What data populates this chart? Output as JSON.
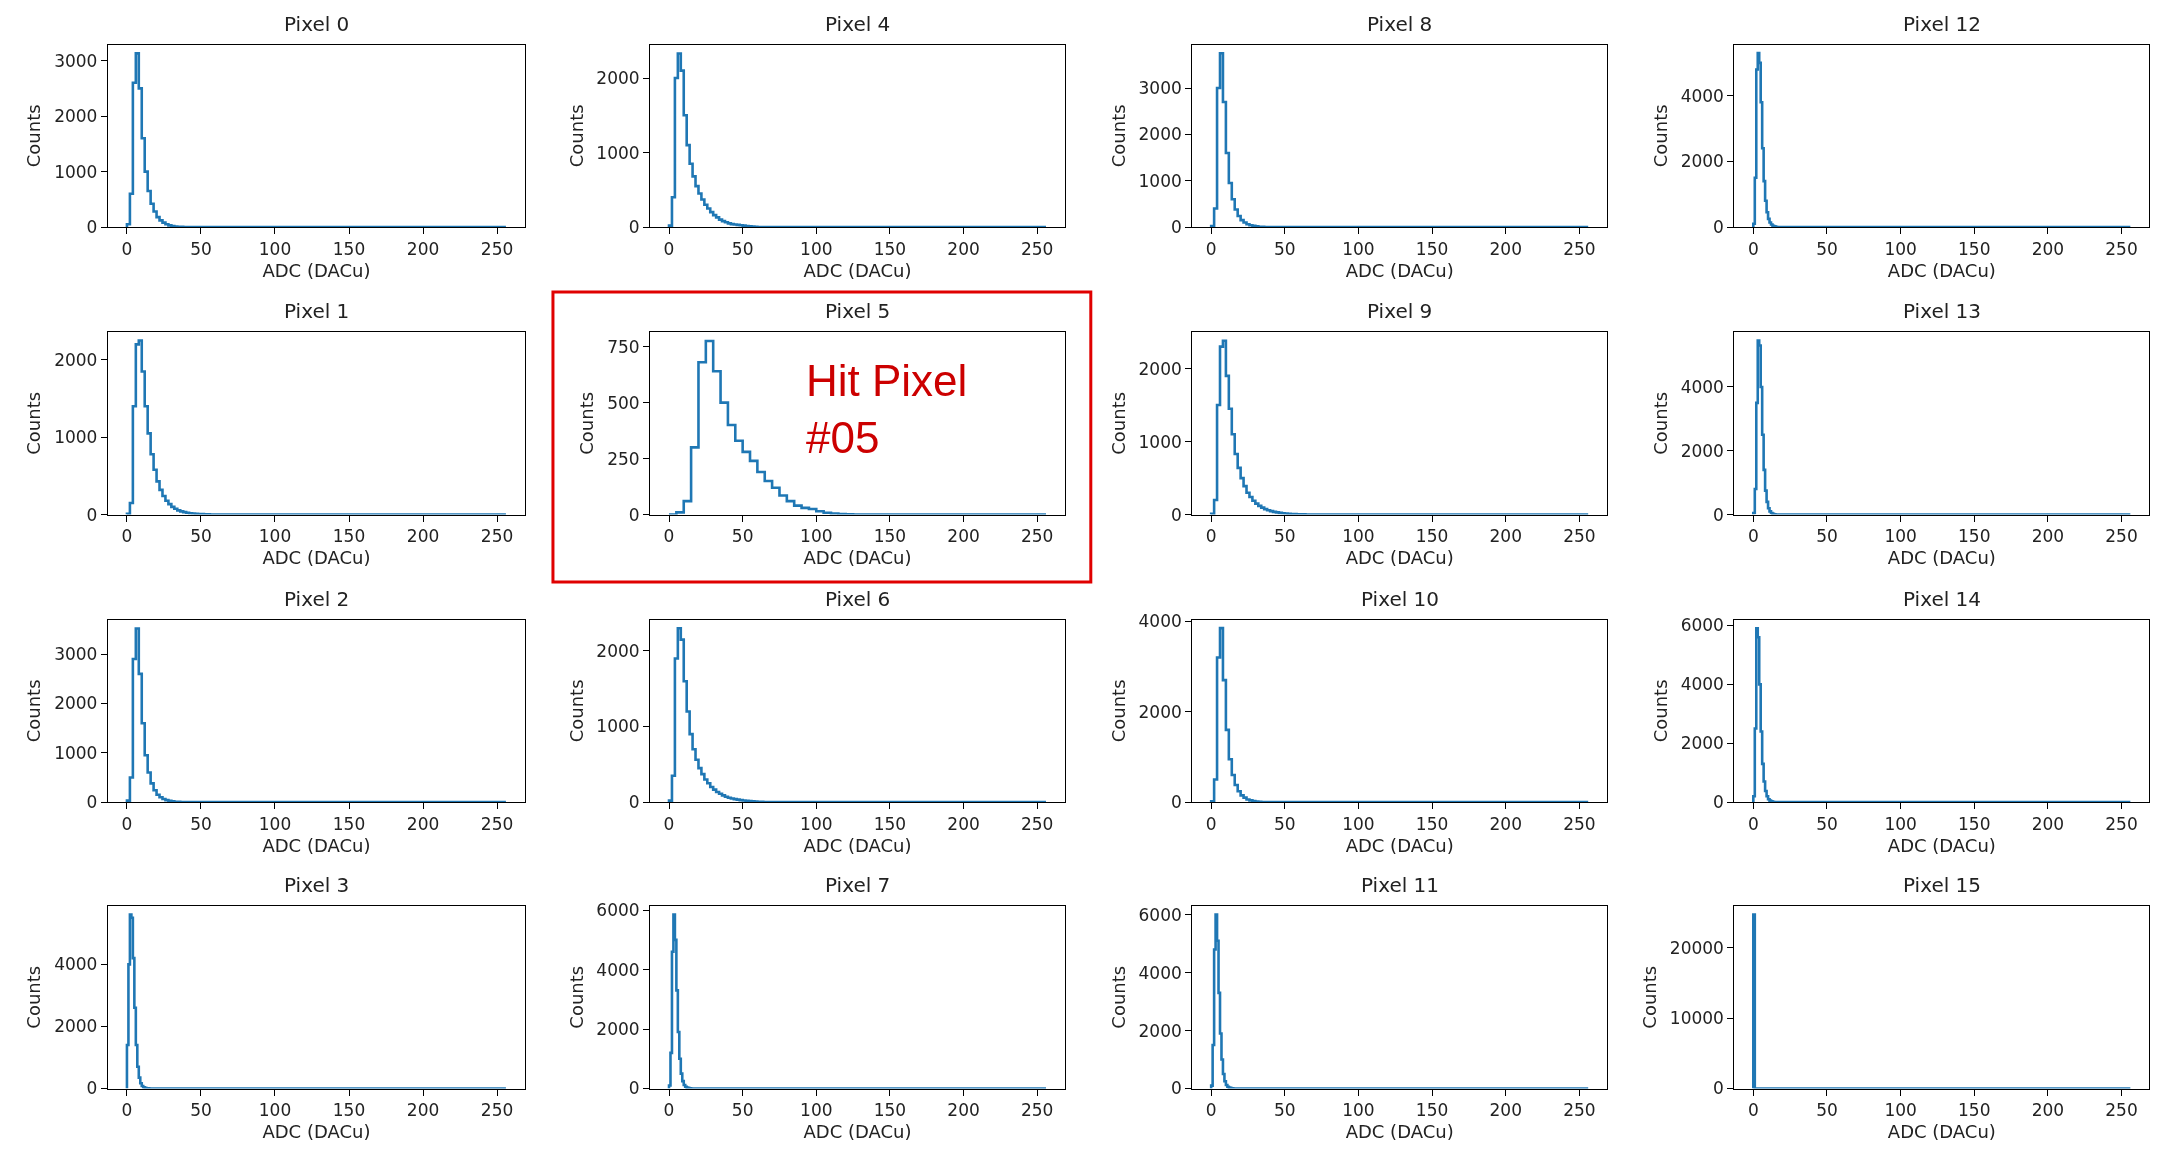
{
  "chart_data": [
    {
      "type": "histogram",
      "title": "Pixel 0",
      "xlabel": "ADC (DACu)",
      "ylabel": "Counts",
      "color": "#1f77b4",
      "xlim": [
        -12.8,
        268.8
      ],
      "xticks": [
        0,
        50,
        100,
        150,
        200,
        250
      ],
      "ylim": [
        0,
        3290
      ],
      "yticks": [
        0,
        1000,
        2000,
        3000
      ],
      "bins": [
        0,
        2,
        4,
        6,
        8,
        10,
        12,
        14,
        16,
        18,
        20,
        22,
        24,
        26,
        28,
        30,
        32,
        34,
        36,
        38,
        40,
        256
      ],
      "values": [
        50,
        600,
        2600,
        3130,
        2500,
        1600,
        1000,
        650,
        420,
        280,
        180,
        120,
        80,
        50,
        30,
        20,
        10,
        5,
        3,
        2,
        0
      ]
    },
    {
      "type": "histogram",
      "title": "Pixel 4",
      "xlabel": "ADC (DACu)",
      "ylabel": "Counts",
      "color": "#1f77b4",
      "xlim": [
        -12.8,
        268.8
      ],
      "xticks": [
        0,
        50,
        100,
        150,
        200,
        250
      ],
      "ylim": [
        0,
        2450
      ],
      "yticks": [
        0,
        1000,
        2000
      ],
      "bins": [
        0,
        2,
        4,
        6,
        8,
        10,
        12,
        14,
        16,
        18,
        20,
        22,
        24,
        26,
        28,
        30,
        32,
        34,
        36,
        38,
        40,
        42,
        44,
        46,
        48,
        50,
        52,
        54,
        56,
        58,
        60,
        256
      ],
      "values": [
        20,
        400,
        2000,
        2330,
        2100,
        1500,
        1100,
        850,
        680,
        550,
        450,
        370,
        300,
        250,
        200,
        160,
        130,
        100,
        80,
        65,
        50,
        40,
        35,
        30,
        25,
        20,
        15,
        10,
        6,
        3,
        0
      ]
    },
    {
      "type": "histogram",
      "title": "Pixel 8",
      "xlabel": "ADC (DACu)",
      "ylabel": "Counts",
      "color": "#1f77b4",
      "xlim": [
        -12.8,
        268.8
      ],
      "xticks": [
        0,
        50,
        100,
        150,
        200,
        250
      ],
      "ylim": [
        0,
        3940
      ],
      "yticks": [
        0,
        1000,
        2000,
        3000
      ],
      "bins": [
        0,
        2,
        4,
        6,
        8,
        10,
        12,
        14,
        16,
        18,
        20,
        22,
        24,
        26,
        28,
        30,
        32,
        34,
        36,
        256
      ],
      "values": [
        20,
        400,
        3000,
        3750,
        2700,
        1600,
        950,
        600,
        380,
        240,
        150,
        100,
        60,
        40,
        25,
        15,
        8,
        4,
        0
      ]
    },
    {
      "type": "histogram",
      "title": "Pixel 12",
      "xlabel": "ADC (DACu)",
      "ylabel": "Counts",
      "color": "#1f77b4",
      "xlim": [
        -12.8,
        268.8
      ],
      "xticks": [
        0,
        50,
        100,
        150,
        200,
        250
      ],
      "ylim": [
        0,
        5560
      ],
      "yticks": [
        0,
        2000,
        4000
      ],
      "bins": [
        0,
        1,
        2,
        3,
        4,
        5,
        6,
        7,
        8,
        9,
        10,
        11,
        12,
        13,
        14,
        15,
        16,
        256
      ],
      "values": [
        100,
        1500,
        4800,
        5300,
        5000,
        3800,
        2400,
        1400,
        800,
        450,
        250,
        140,
        80,
        40,
        20,
        8,
        0
      ]
    },
    {
      "type": "histogram",
      "title": "Pixel 1",
      "xlabel": "ADC (DACu)",
      "ylabel": "Counts",
      "color": "#1f77b4",
      "xlim": [
        -12.8,
        268.8
      ],
      "xticks": [
        0,
        50,
        100,
        150,
        200,
        250
      ],
      "ylim": [
        0,
        2360
      ],
      "yticks": [
        0,
        1000,
        2000
      ],
      "bins": [
        0,
        2,
        4,
        6,
        8,
        10,
        12,
        14,
        16,
        18,
        20,
        22,
        24,
        26,
        28,
        30,
        32,
        34,
        36,
        38,
        40,
        42,
        44,
        46,
        48,
        50,
        52,
        54,
        56,
        58,
        60,
        256
      ],
      "values": [
        10,
        150,
        1400,
        2200,
        2250,
        1850,
        1400,
        1050,
        780,
        580,
        430,
        320,
        240,
        180,
        135,
        100,
        75,
        55,
        42,
        32,
        24,
        18,
        14,
        10,
        8,
        6,
        4,
        3,
        2,
        1,
        0
      ]
    },
    {
      "type": "histogram",
      "title": "Pixel 5",
      "xlabel": "ADC (DACu)",
      "ylabel": "Counts",
      "color": "#1f77b4",
      "xlim": [
        -12.8,
        268.8
      ],
      "xticks": [
        0,
        50,
        100,
        150,
        200,
        250
      ],
      "ylim": [
        0,
        815
      ],
      "yticks": [
        0,
        250,
        500,
        750
      ],
      "bins": [
        0,
        5,
        10,
        15,
        20,
        25,
        30,
        35,
        40,
        45,
        50,
        55,
        60,
        65,
        70,
        75,
        80,
        85,
        90,
        95,
        100,
        105,
        110,
        115,
        120,
        125,
        256
      ],
      "values": [
        0,
        10,
        60,
        300,
        680,
        775,
        640,
        500,
        400,
        330,
        280,
        240,
        190,
        150,
        120,
        85,
        60,
        40,
        30,
        25,
        15,
        8,
        5,
        3,
        1,
        0
      ],
      "annotations": [
        "Hit Pixel\n#05"
      ]
    },
    {
      "type": "histogram",
      "title": "Pixel 9",
      "xlabel": "ADC (DACu)",
      "ylabel": "Counts",
      "color": "#1f77b4",
      "xlim": [
        -12.8,
        268.8
      ],
      "xticks": [
        0,
        50,
        100,
        150,
        200,
        250
      ],
      "ylim": [
        0,
        2500
      ],
      "yticks": [
        0,
        1000,
        2000
      ],
      "bins": [
        0,
        2,
        4,
        6,
        8,
        10,
        12,
        14,
        16,
        18,
        20,
        22,
        24,
        26,
        28,
        30,
        32,
        34,
        36,
        38,
        40,
        42,
        44,
        46,
        48,
        50,
        52,
        54,
        56,
        58,
        60,
        62,
        64,
        66,
        256
      ],
      "values": [
        10,
        200,
        1500,
        2300,
        2380,
        1900,
        1450,
        1100,
        830,
        640,
        500,
        390,
        300,
        240,
        190,
        150,
        120,
        95,
        75,
        60,
        48,
        38,
        30,
        24,
        19,
        15,
        12,
        9,
        7,
        5,
        4,
        3,
        2,
        0
      ]
    },
    {
      "type": "histogram",
      "title": "Pixel 13",
      "xlabel": "ADC (DACu)",
      "ylabel": "Counts",
      "color": "#1f77b4",
      "xlim": [
        -12.8,
        268.8
      ],
      "xticks": [
        0,
        50,
        100,
        150,
        200,
        250
      ],
      "ylim": [
        0,
        5720
      ],
      "yticks": [
        0,
        2000,
        4000
      ],
      "bins": [
        0,
        1,
        2,
        3,
        4,
        5,
        6,
        7,
        8,
        9,
        10,
        11,
        12,
        13,
        14,
        15,
        16,
        256
      ],
      "values": [
        50,
        800,
        3500,
        5450,
        5300,
        4000,
        2500,
        1400,
        750,
        400,
        200,
        100,
        50,
        25,
        10,
        4,
        0
      ]
    },
    {
      "type": "histogram",
      "title": "Pixel 2",
      "xlabel": "ADC (DACu)",
      "ylabel": "Counts",
      "color": "#1f77b4",
      "xlim": [
        -12.8,
        268.8
      ],
      "xticks": [
        0,
        50,
        100,
        150,
        200,
        250
      ],
      "ylim": [
        0,
        3700
      ],
      "yticks": [
        0,
        1000,
        2000,
        3000
      ],
      "bins": [
        0,
        2,
        4,
        6,
        8,
        10,
        12,
        14,
        16,
        18,
        20,
        22,
        24,
        26,
        28,
        30,
        32,
        34,
        36,
        38,
        40,
        256
      ],
      "values": [
        30,
        500,
        2900,
        3520,
        2600,
        1600,
        950,
        600,
        380,
        240,
        150,
        100,
        65,
        40,
        25,
        15,
        9,
        5,
        3,
        2,
        0
      ]
    },
    {
      "type": "histogram",
      "title": "Pixel 6",
      "xlabel": "ADC (DACu)",
      "ylabel": "Counts",
      "color": "#1f77b4",
      "xlim": [
        -12.8,
        268.8
      ],
      "xticks": [
        0,
        50,
        100,
        150,
        200,
        250
      ],
      "ylim": [
        0,
        2415
      ],
      "yticks": [
        0,
        1000,
        2000
      ],
      "bins": [
        0,
        2,
        4,
        6,
        8,
        10,
        12,
        14,
        16,
        18,
        20,
        22,
        24,
        26,
        28,
        30,
        32,
        34,
        36,
        38,
        40,
        42,
        44,
        46,
        48,
        50,
        52,
        54,
        56,
        58,
        60,
        62,
        64,
        66,
        256
      ],
      "values": [
        20,
        350,
        1900,
        2300,
        2150,
        1600,
        1200,
        900,
        700,
        560,
        450,
        370,
        300,
        250,
        200,
        165,
        135,
        110,
        90,
        72,
        58,
        48,
        40,
        33,
        27,
        22,
        18,
        14,
        11,
        8,
        6,
        4,
        2,
        0
      ]
    },
    {
      "type": "histogram",
      "title": "Pixel 10",
      "xlabel": "ADC (DACu)",
      "ylabel": "Counts",
      "color": "#1f77b4",
      "xlim": [
        -12.8,
        268.8
      ],
      "xticks": [
        0,
        50,
        100,
        150,
        200,
        250
      ],
      "ylim": [
        0,
        4040
      ],
      "yticks": [
        0,
        2000,
        4000
      ],
      "bins": [
        0,
        2,
        4,
        6,
        8,
        10,
        12,
        14,
        16,
        18,
        20,
        22,
        24,
        26,
        28,
        30,
        32,
        34,
        36,
        256
      ],
      "values": [
        20,
        500,
        3200,
        3850,
        2700,
        1600,
        950,
        600,
        380,
        240,
        150,
        100,
        60,
        40,
        25,
        15,
        8,
        4,
        0
      ]
    },
    {
      "type": "histogram",
      "title": "Pixel 14",
      "xlabel": "ADC (DACu)",
      "ylabel": "Counts",
      "color": "#1f77b4",
      "xlim": [
        -12.8,
        268.8
      ],
      "xticks": [
        0,
        50,
        100,
        150,
        200,
        250
      ],
      "ylim": [
        0,
        6200
      ],
      "yticks": [
        0,
        2000,
        4000,
        6000
      ],
      "bins": [
        0,
        1,
        2,
        3,
        4,
        5,
        6,
        7,
        8,
        9,
        10,
        11,
        12,
        13,
        14,
        15,
        16,
        256
      ],
      "values": [
        200,
        2500,
        5900,
        5600,
        4000,
        2400,
        1300,
        700,
        380,
        200,
        100,
        50,
        25,
        12,
        6,
        3,
        0
      ]
    },
    {
      "type": "histogram",
      "title": "Pixel 3",
      "xlabel": "ADC (DACu)",
      "ylabel": "Counts",
      "color": "#1f77b4",
      "xlim": [
        -12.8,
        268.8
      ],
      "xticks": [
        0,
        50,
        100,
        150,
        200,
        250
      ],
      "ylim": [
        0,
        5880
      ],
      "yticks": [
        0,
        2000,
        4000
      ],
      "bins": [
        0,
        1,
        2,
        3,
        4,
        5,
        6,
        7,
        8,
        9,
        10,
        11,
        12,
        13,
        14,
        15,
        16,
        256
      ],
      "values": [
        1400,
        4000,
        5600,
        5500,
        4200,
        2600,
        1400,
        700,
        350,
        170,
        80,
        40,
        20,
        10,
        5,
        2,
        0
      ]
    },
    {
      "type": "histogram",
      "title": "Pixel 7",
      "xlabel": "ADC (DACu)",
      "ylabel": "Counts",
      "color": "#1f77b4",
      "xlim": [
        -12.8,
        268.8
      ],
      "xticks": [
        0,
        50,
        100,
        150,
        200,
        250
      ],
      "ylim": [
        0,
        6140
      ],
      "yticks": [
        0,
        2000,
        4000,
        6000
      ],
      "bins": [
        0,
        1,
        2,
        3,
        4,
        5,
        6,
        7,
        8,
        9,
        10,
        11,
        12,
        13,
        14,
        15,
        16,
        256
      ],
      "values": [
        100,
        1200,
        4600,
        5850,
        5000,
        3300,
        1900,
        1000,
        500,
        250,
        120,
        60,
        30,
        15,
        7,
        3,
        0
      ]
    },
    {
      "type": "histogram",
      "title": "Pixel 11",
      "xlabel": "ADC (DACu)",
      "ylabel": "Counts",
      "color": "#1f77b4",
      "xlim": [
        -12.8,
        268.8
      ],
      "xticks": [
        0,
        50,
        100,
        150,
        200,
        250
      ],
      "ylim": [
        0,
        6300
      ],
      "yticks": [
        0,
        2000,
        4000,
        6000
      ],
      "bins": [
        0,
        1,
        2,
        3,
        4,
        5,
        6,
        7,
        8,
        9,
        10,
        11,
        12,
        13,
        14,
        15,
        16,
        256
      ],
      "values": [
        100,
        1500,
        4800,
        6000,
        5100,
        3300,
        1900,
        1000,
        500,
        250,
        120,
        60,
        30,
        15,
        7,
        3,
        0
      ]
    },
    {
      "type": "histogram",
      "title": "Pixel 15",
      "xlabel": "ADC (DACu)",
      "ylabel": "Counts",
      "color": "#1f77b4",
      "xlim": [
        -12.8,
        268.8
      ],
      "xticks": [
        0,
        50,
        100,
        150,
        200,
        250
      ],
      "ylim": [
        0,
        25900
      ],
      "yticks": [
        0,
        10000,
        20000
      ],
      "bins": [
        0,
        1,
        256
      ],
      "values": [
        24700,
        0
      ]
    }
  ]
}
